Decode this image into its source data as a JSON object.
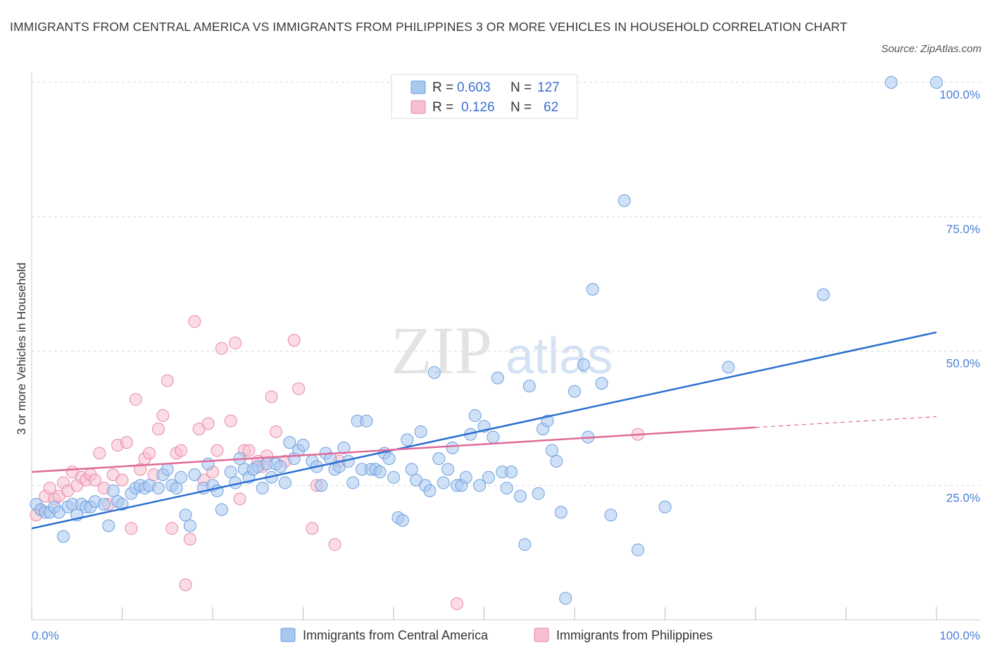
{
  "title": "IMMIGRANTS FROM CENTRAL AMERICA VS IMMIGRANTS FROM PHILIPPINES 3 OR MORE VEHICLES IN HOUSEHOLD CORRELATION CHART",
  "source": "Source: ZipAtlas.com",
  "watermark": {
    "zip": "ZIP",
    "atlas": "atlas"
  },
  "colors": {
    "blue_fill": "#a9c8f0",
    "blue_stroke": "#6d9fe0",
    "blue_line": "#2a6fd0",
    "pink_fill": "#f7c0d0",
    "pink_stroke": "#e88aa8",
    "pink_line": "#e06b96",
    "grid": "#d9d9d9",
    "tick_text": "#4a7fd4"
  },
  "legend": {
    "rows": [
      {
        "r_label": "R =",
        "r_value": "0.603",
        "n_label": "N =",
        "n_value": "127"
      },
      {
        "r_label": "R =",
        "r_value": "0.126",
        "n_label": "N =",
        "n_value": "62"
      }
    ]
  },
  "chart_data": {
    "type": "scatter",
    "ylabel": "3 or more Vehicles in Household",
    "xlim": [
      0,
      100
    ],
    "ylim": [
      0,
      100
    ],
    "x_tick_labels": [
      "0.0%",
      "100.0%"
    ],
    "y_ticks": [
      {
        "value": 25,
        "label": "25.0%"
      },
      {
        "value": 50,
        "label": "50.0%"
      },
      {
        "value": 75,
        "label": "75.0%"
      },
      {
        "value": 100,
        "label": "100.0%"
      }
    ],
    "grid": "horizontal dashed",
    "legend_position": "top-center",
    "series": [
      {
        "name": "Immigrants from Central America",
        "color": "blue",
        "R": 0.603,
        "N": 127,
        "trend": {
          "x": [
            0,
            100
          ],
          "y": [
            17.0,
            53.5
          ],
          "dashed_after": null
        },
        "points": [
          [
            0.5,
            21.5
          ],
          [
            1,
            20.5
          ],
          [
            1.5,
            20
          ],
          [
            2,
            20
          ],
          [
            2.5,
            21
          ],
          [
            3,
            20
          ],
          [
            3.5,
            15.5
          ],
          [
            4,
            21
          ],
          [
            4.5,
            21.5
          ],
          [
            5,
            19.5
          ],
          [
            5.5,
            21.5
          ],
          [
            6,
            21
          ],
          [
            6.5,
            21
          ],
          [
            7,
            22
          ],
          [
            8,
            21.5
          ],
          [
            8.5,
            17.5
          ],
          [
            9,
            24
          ],
          [
            9.5,
            22
          ],
          [
            10,
            21.5
          ],
          [
            11,
            23.5
          ],
          [
            11.5,
            24.5
          ],
          [
            12,
            25
          ],
          [
            12.5,
            24.5
          ],
          [
            13,
            25
          ],
          [
            14,
            24.5
          ],
          [
            14.5,
            27
          ],
          [
            15,
            28
          ],
          [
            15.5,
            25
          ],
          [
            16,
            24.5
          ],
          [
            16.5,
            26.5
          ],
          [
            17,
            19.5
          ],
          [
            17.5,
            17.5
          ],
          [
            18,
            27
          ],
          [
            19,
            24.5
          ],
          [
            19.5,
            29
          ],
          [
            20,
            25
          ],
          [
            20.5,
            24
          ],
          [
            21,
            20.5
          ],
          [
            22,
            27.5
          ],
          [
            22.5,
            25.5
          ],
          [
            23,
            30
          ],
          [
            23.5,
            28
          ],
          [
            24,
            26.5
          ],
          [
            24.5,
            28
          ],
          [
            25,
            28.5
          ],
          [
            25.5,
            24.5
          ],
          [
            26,
            29
          ],
          [
            26.5,
            26.5
          ],
          [
            27,
            29
          ],
          [
            27.5,
            28.5
          ],
          [
            28,
            25.5
          ],
          [
            28.5,
            33
          ],
          [
            29,
            30
          ],
          [
            29.5,
            31.5
          ],
          [
            30,
            32.5
          ],
          [
            31,
            29.5
          ],
          [
            31.5,
            28.5
          ],
          [
            32,
            25
          ],
          [
            32.5,
            31
          ],
          [
            33,
            30
          ],
          [
            33.5,
            28
          ],
          [
            34,
            28.5
          ],
          [
            34.5,
            32
          ],
          [
            35,
            29.5
          ],
          [
            35.5,
            25.5
          ],
          [
            36,
            37
          ],
          [
            36.5,
            28
          ],
          [
            37,
            37
          ],
          [
            37.5,
            28
          ],
          [
            38,
            28
          ],
          [
            38.5,
            27.5
          ],
          [
            39,
            31
          ],
          [
            39.5,
            30
          ],
          [
            40,
            26.5
          ],
          [
            40.5,
            19
          ],
          [
            41,
            18.5
          ],
          [
            41.5,
            33.5
          ],
          [
            42,
            28
          ],
          [
            42.5,
            26
          ],
          [
            43,
            35
          ],
          [
            43.5,
            25
          ],
          [
            44,
            24
          ],
          [
            44.5,
            46
          ],
          [
            45,
            30
          ],
          [
            45.5,
            25.5
          ],
          [
            46,
            28
          ],
          [
            46.5,
            32
          ],
          [
            47,
            25
          ],
          [
            47.5,
            25
          ],
          [
            48,
            26.5
          ],
          [
            48.5,
            34.5
          ],
          [
            49,
            38
          ],
          [
            49.5,
            25
          ],
          [
            50,
            36
          ],
          [
            50.5,
            26.5
          ],
          [
            51,
            34
          ],
          [
            51.5,
            45
          ],
          [
            52,
            27.5
          ],
          [
            52.5,
            24.5
          ],
          [
            53,
            27.5
          ],
          [
            54,
            23
          ],
          [
            54.5,
            14
          ],
          [
            55,
            43.5
          ],
          [
            56,
            23.5
          ],
          [
            56.5,
            35.5
          ],
          [
            57,
            37
          ],
          [
            57.5,
            31.5
          ],
          [
            58,
            29.5
          ],
          [
            58.5,
            20
          ],
          [
            59,
            4
          ],
          [
            60,
            42.5
          ],
          [
            61,
            47.5
          ],
          [
            61.5,
            34
          ],
          [
            62,
            61.5
          ],
          [
            63,
            44
          ],
          [
            64,
            19.5
          ],
          [
            65.5,
            78
          ],
          [
            67,
            13
          ],
          [
            70,
            21
          ],
          [
            77,
            47
          ],
          [
            87.5,
            60.5
          ],
          [
            95,
            100
          ],
          [
            100,
            100
          ]
        ]
      },
      {
        "name": "Immigrants from Philippines",
        "color": "pink",
        "R": 0.126,
        "N": 62,
        "trend": {
          "x": [
            0,
            80
          ],
          "y": [
            27.5,
            35.8
          ],
          "dashed_to": [
            100,
            37.8
          ]
        },
        "points": [
          [
            0.5,
            19.5
          ],
          [
            1,
            20.5
          ],
          [
            1.5,
            23
          ],
          [
            2,
            24.5
          ],
          [
            2.5,
            22.5
          ],
          [
            3,
            23
          ],
          [
            3.5,
            25.5
          ],
          [
            4,
            24
          ],
          [
            4.5,
            27.5
          ],
          [
            5,
            25
          ],
          [
            5.5,
            26.5
          ],
          [
            6,
            26
          ],
          [
            6.5,
            27
          ],
          [
            7,
            26
          ],
          [
            7.5,
            31
          ],
          [
            8,
            24.5
          ],
          [
            8.5,
            21.5
          ],
          [
            9,
            27
          ],
          [
            9.5,
            32.5
          ],
          [
            10,
            26
          ],
          [
            10.5,
            33
          ],
          [
            11,
            17
          ],
          [
            11.5,
            41
          ],
          [
            12,
            28
          ],
          [
            12.5,
            30
          ],
          [
            13,
            31
          ],
          [
            13.5,
            27
          ],
          [
            14,
            35.5
          ],
          [
            14.5,
            38
          ],
          [
            15,
            44.5
          ],
          [
            15.5,
            17
          ],
          [
            16,
            31
          ],
          [
            16.5,
            31.5
          ],
          [
            17,
            6.5
          ],
          [
            17.5,
            15
          ],
          [
            18,
            55.5
          ],
          [
            18.5,
            35.5
          ],
          [
            19,
            26
          ],
          [
            19.5,
            36.5
          ],
          [
            20,
            27.5
          ],
          [
            20.5,
            31.5
          ],
          [
            21,
            50.5
          ],
          [
            22,
            37
          ],
          [
            22.5,
            51.5
          ],
          [
            23,
            22.5
          ],
          [
            23.5,
            31.5
          ],
          [
            24,
            31.5
          ],
          [
            25,
            29.5
          ],
          [
            25.5,
            28.5
          ],
          [
            26,
            30.5
          ],
          [
            26.5,
            41.5
          ],
          [
            27,
            35
          ],
          [
            28,
            29.5
          ],
          [
            29,
            52
          ],
          [
            29.5,
            43
          ],
          [
            31,
            17
          ],
          [
            31.5,
            25
          ],
          [
            33.5,
            14
          ],
          [
            34,
            29.5
          ],
          [
            47,
            3
          ],
          [
            67,
            34.5
          ]
        ]
      }
    ]
  },
  "bottom_legend": [
    {
      "label": "Immigrants from Central America",
      "color": "blue"
    },
    {
      "label": "Immigrants from Philippines",
      "color": "pink"
    }
  ]
}
